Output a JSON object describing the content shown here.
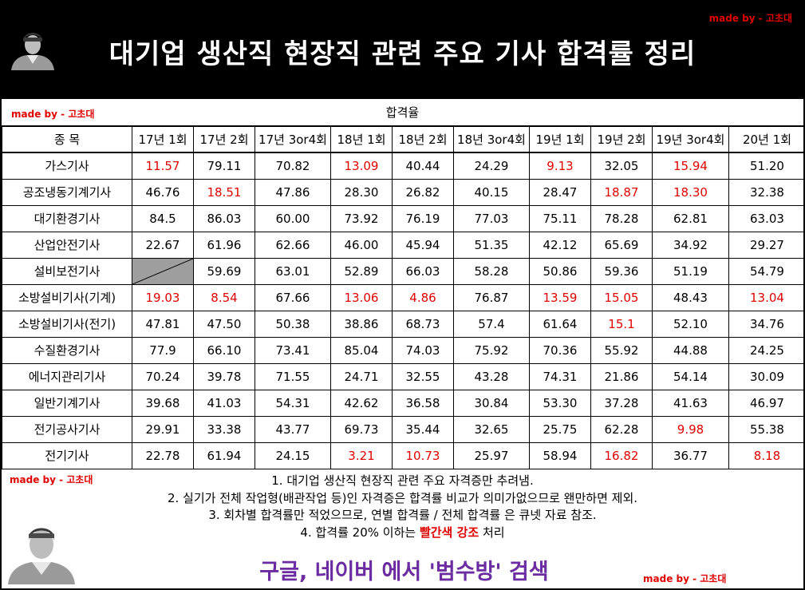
{
  "header": {
    "title": "대기업 생산직 현장직 관련 주요 기사 합격률 정리",
    "credit_prefix": "made by - ",
    "credit_name": "고초대"
  },
  "colors": {
    "accent_red": "#e00000",
    "search_purple": "#6a2ca0",
    "na_gray": "#9e9e9e"
  },
  "table": {
    "caption": "합격율",
    "subject_header": "종 목",
    "columns": [
      "17년 1회",
      "17년 2회",
      "17년 3or4회",
      "18년 1회",
      "18년 2회",
      "18년 3or4회",
      "19년 1회",
      "19년 2회",
      "19년 3or4회",
      "20년 1회"
    ],
    "rows": [
      {
        "name": "가스기사",
        "values": [
          "11.57",
          "79.11",
          "70.82",
          "13.09",
          "40.44",
          "24.29",
          "9.13",
          "32.05",
          "15.94",
          "51.20"
        ]
      },
      {
        "name": "공조냉동기계기사",
        "values": [
          "46.76",
          "18.51",
          "47.86",
          "28.30",
          "26.82",
          "40.15",
          "28.47",
          "18.87",
          "18.30",
          "32.38"
        ]
      },
      {
        "name": "대기환경기사",
        "values": [
          "84.5",
          "86.03",
          "60.00",
          "73.92",
          "76.19",
          "77.03",
          "75.11",
          "78.28",
          "62.81",
          "63.03"
        ]
      },
      {
        "name": "산업안전기사",
        "values": [
          "22.67",
          "61.96",
          "62.66",
          "46.00",
          "45.94",
          "51.35",
          "42.12",
          "65.69",
          "34.92",
          "29.27"
        ]
      },
      {
        "name": "설비보전기사",
        "values": [
          "",
          "59.69",
          "63.01",
          "52.89",
          "66.03",
          "58.28",
          "50.86",
          "59.36",
          "51.19",
          "54.79"
        ]
      },
      {
        "name": "소방설비기사(기계)",
        "values": [
          "19.03",
          "8.54",
          "67.66",
          "13.06",
          "4.86",
          "76.87",
          "13.59",
          "15.05",
          "48.43",
          "13.04"
        ]
      },
      {
        "name": "소방설비기사(전기)",
        "values": [
          "47.81",
          "47.50",
          "50.38",
          "38.86",
          "68.73",
          "57.4",
          "61.64",
          "15.1",
          "52.10",
          "34.76"
        ]
      },
      {
        "name": "수질환경기사",
        "values": [
          "77.9",
          "66.10",
          "73.41",
          "85.04",
          "74.03",
          "75.92",
          "70.36",
          "55.92",
          "44.88",
          "24.25"
        ]
      },
      {
        "name": "에너지관리기사",
        "values": [
          "70.24",
          "39.78",
          "71.55",
          "24.71",
          "32.55",
          "43.28",
          "74.31",
          "21.86",
          "54.14",
          "30.09"
        ]
      },
      {
        "name": "일반기계기사",
        "values": [
          "39.68",
          "41.03",
          "54.31",
          "42.62",
          "36.58",
          "30.84",
          "53.30",
          "37.28",
          "41.63",
          "46.97"
        ]
      },
      {
        "name": "전기공사기사",
        "values": [
          "29.91",
          "33.38",
          "43.77",
          "69.73",
          "35.44",
          "32.65",
          "25.75",
          "62.28",
          "9.98",
          "55.38"
        ]
      },
      {
        "name": "전기기사",
        "values": [
          "22.78",
          "61.94",
          "24.15",
          "3.21",
          "10.73",
          "25.97",
          "58.94",
          "16.82",
          "36.77",
          "8.18"
        ]
      }
    ]
  },
  "notes": {
    "line1": "1. 대기업 생산직 현장직 관련 주요 자격증만 추려냄.",
    "line2": "2. 실기가 전체 작업형(배관작업 등)인 자격증은 합격률 비교가 의미가없으므로 왠만하면 제외.",
    "line3": "3. 회차별 합격률만 적었으므로, 연별 합격률 / 전체 합격률 은 큐넷 자료 참조.",
    "line4_prefix": "4. 합격률 20% 이하는 ",
    "line4_highlight": "빨간색 강조",
    "line4_suffix": " 처리"
  },
  "search": {
    "text": "구글, 네이버 에서 '범수방' 검색"
  }
}
